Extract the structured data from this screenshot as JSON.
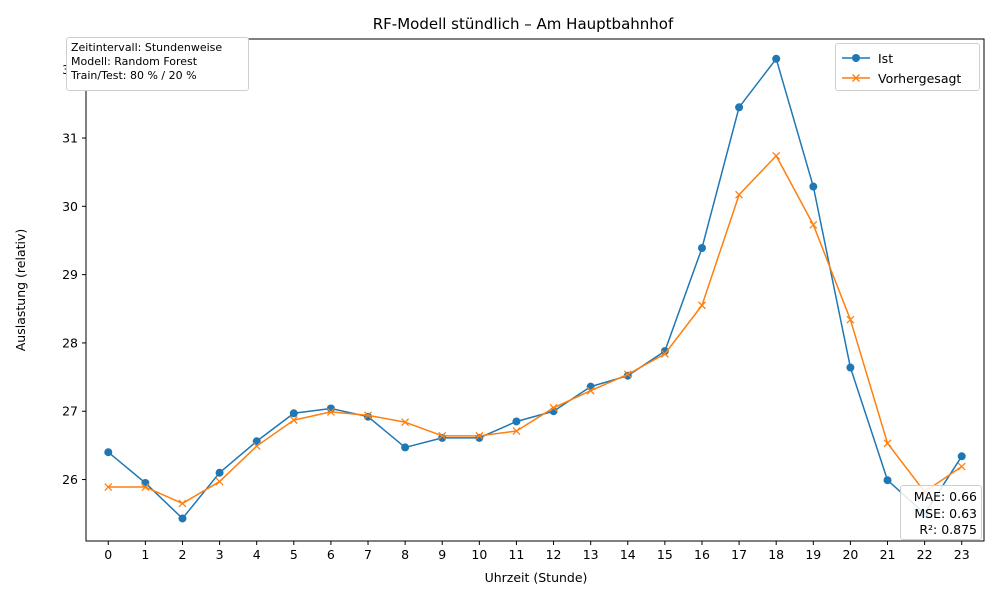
{
  "chart_data": {
    "type": "line",
    "title": "RF-Modell stündlich – Am Hauptbahnhof",
    "xlabel": "Uhrzeit (Stunde)",
    "ylabel": "Auslastung (relativ)",
    "x": [
      0,
      1,
      2,
      3,
      4,
      5,
      6,
      7,
      8,
      9,
      10,
      11,
      12,
      13,
      14,
      15,
      16,
      17,
      18,
      19,
      20,
      21,
      22,
      23
    ],
    "xlim": [
      -0.6,
      23.6
    ],
    "ylim": [
      25.1,
      32.45
    ],
    "yticks": [
      26,
      27,
      28,
      29,
      30,
      31,
      32
    ],
    "grid": false,
    "legend_position": "top-right",
    "series": [
      {
        "name": "Ist",
        "color": "#1f77b4",
        "marker": "circle",
        "values": [
          26.4,
          25.95,
          25.43,
          26.1,
          26.56,
          26.97,
          27.04,
          26.92,
          26.47,
          26.61,
          26.61,
          26.85,
          27.0,
          27.36,
          27.52,
          27.88,
          29.39,
          31.45,
          32.16,
          30.29,
          27.64,
          25.99,
          25.5,
          26.34
        ]
      },
      {
        "name": "Vorhergesagt",
        "color": "#ff7f0e",
        "marker": "x",
        "values": [
          25.89,
          25.89,
          25.65,
          25.97,
          26.49,
          26.87,
          26.99,
          26.94,
          26.84,
          26.64,
          26.64,
          26.71,
          27.05,
          27.3,
          27.54,
          27.84,
          28.55,
          30.17,
          30.74,
          29.73,
          28.34,
          26.53,
          25.82,
          26.19
        ]
      }
    ]
  },
  "info_box": {
    "line1": "Zeitintervall: Stundenweise",
    "line2": "Modell: Random Forest",
    "line3": "Train/Test: 80 % / 20 %"
  },
  "metrics_box": {
    "mae": "MAE: 0.66",
    "mse": "MSE: 0.63",
    "r2": "R²: 0.875"
  }
}
